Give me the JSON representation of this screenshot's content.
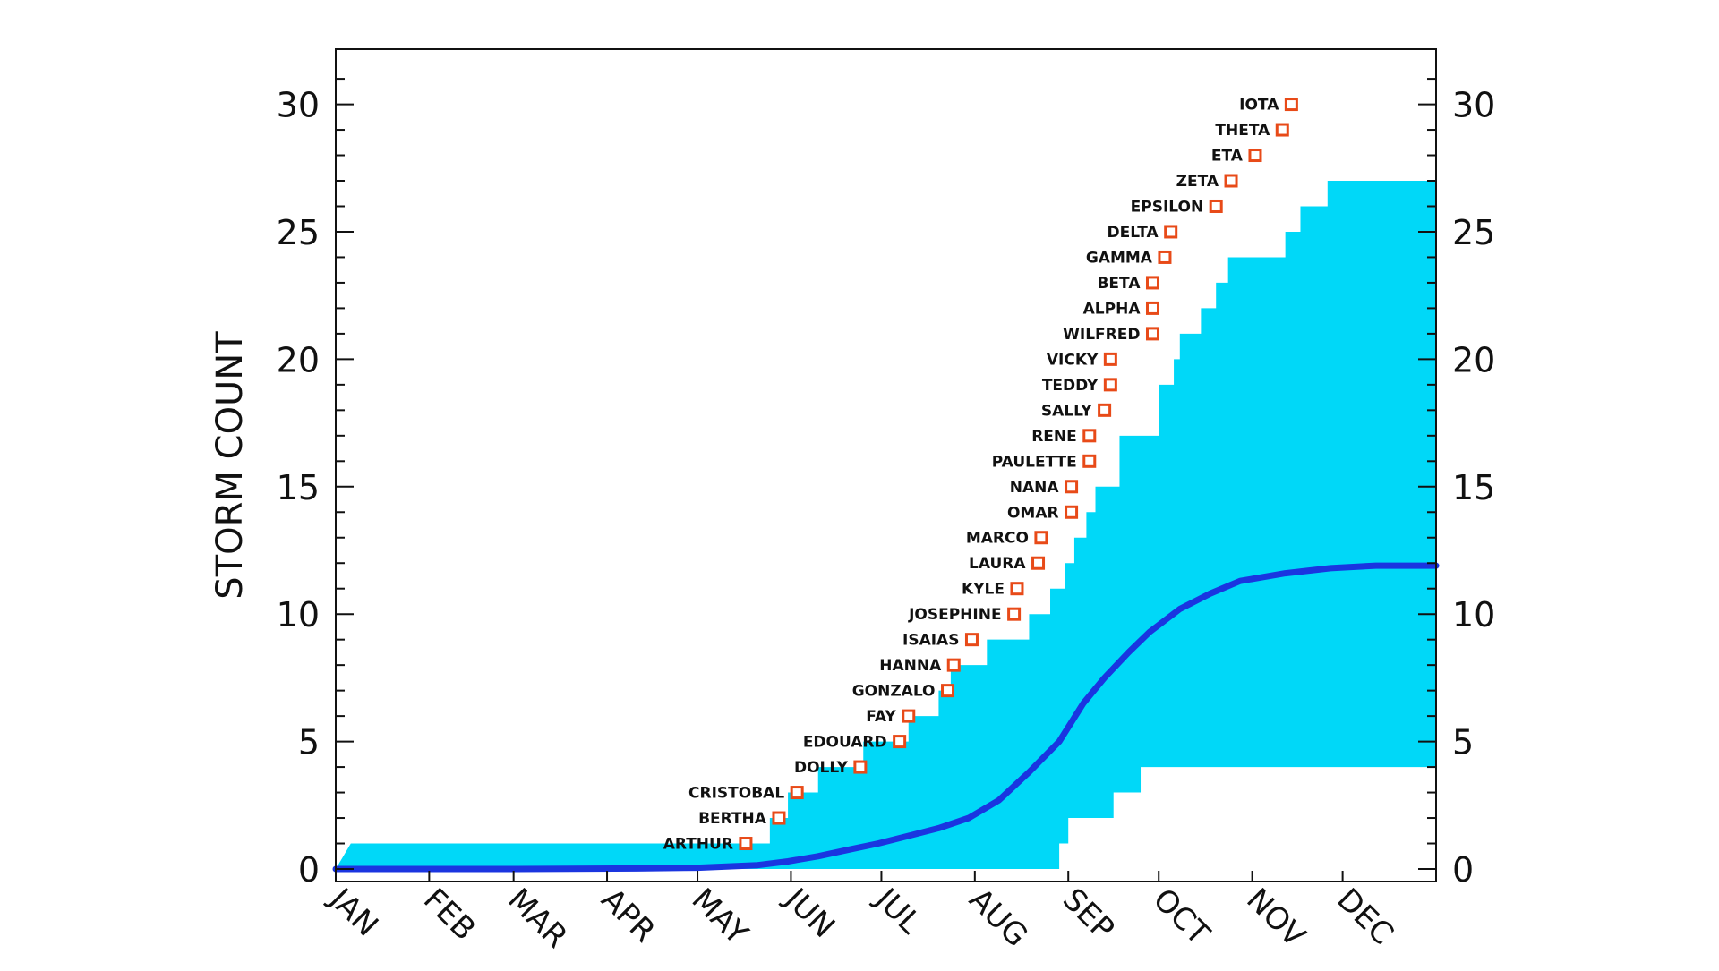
{
  "chart_data": {
    "type": "area",
    "ylabel": "STORM COUNT",
    "xlabel": "",
    "title": "",
    "ylim": [
      0,
      32
    ],
    "xlim": [
      0,
      365
    ],
    "yticks_major": [
      0,
      5,
      10,
      15,
      20,
      25,
      30
    ],
    "months": [
      "JAN",
      "FEB",
      "MAR",
      "APR",
      "MAY",
      "JUN",
      "JUL",
      "AUG",
      "SEP",
      "OCT",
      "NOV",
      "DEC"
    ],
    "month_start_days": [
      0,
      31,
      59,
      90,
      120,
      151,
      181,
      212,
      243,
      273,
      304,
      334
    ],
    "colors": {
      "band": "#00d8f8",
      "mean_line": "#1a35e0",
      "marker": "#e84a18",
      "axis": "#111111"
    },
    "band_upper": [
      [
        0,
        0
      ],
      [
        5,
        1
      ],
      [
        144,
        1
      ],
      [
        144,
        2
      ],
      [
        150,
        2
      ],
      [
        150,
        3
      ],
      [
        160,
        3
      ],
      [
        160,
        4
      ],
      [
        175,
        4
      ],
      [
        175,
        5
      ],
      [
        190,
        5
      ],
      [
        190,
        6
      ],
      [
        200,
        6
      ],
      [
        200,
        7
      ],
      [
        204,
        7
      ],
      [
        204,
        8
      ],
      [
        216,
        8
      ],
      [
        216,
        9
      ],
      [
        230,
        9
      ],
      [
        230,
        10
      ],
      [
        237,
        10
      ],
      [
        237,
        11
      ],
      [
        242,
        11
      ],
      [
        242,
        12
      ],
      [
        245,
        12
      ],
      [
        245,
        13
      ],
      [
        249,
        13
      ],
      [
        249,
        14
      ],
      [
        252,
        14
      ],
      [
        252,
        15
      ],
      [
        260,
        15
      ],
      [
        260,
        17
      ],
      [
        273,
        17
      ],
      [
        273,
        19
      ],
      [
        278,
        19
      ],
      [
        278,
        20
      ],
      [
        280,
        20
      ],
      [
        280,
        21
      ],
      [
        287,
        21
      ],
      [
        287,
        22
      ],
      [
        292,
        22
      ],
      [
        292,
        23
      ],
      [
        296,
        23
      ],
      [
        296,
        24
      ],
      [
        315,
        24
      ],
      [
        315,
        25
      ],
      [
        320,
        25
      ],
      [
        320,
        26
      ],
      [
        329,
        26
      ],
      [
        329,
        27
      ],
      [
        365,
        27
      ],
      [
        365,
        28
      ]
    ],
    "band_lower": [
      [
        0,
        0
      ],
      [
        240,
        0
      ],
      [
        240,
        1
      ],
      [
        243,
        1
      ],
      [
        243,
        2
      ],
      [
        258,
        2
      ],
      [
        258,
        3
      ],
      [
        267,
        3
      ],
      [
        267,
        4
      ],
      [
        365,
        4
      ]
    ],
    "mean_curve": [
      [
        0,
        0
      ],
      [
        60,
        0
      ],
      [
        100,
        0.02
      ],
      [
        120,
        0.05
      ],
      [
        140,
        0.15
      ],
      [
        150,
        0.3
      ],
      [
        160,
        0.5
      ],
      [
        170,
        0.75
      ],
      [
        180,
        1
      ],
      [
        190,
        1.3
      ],
      [
        200,
        1.6
      ],
      [
        210,
        2
      ],
      [
        220,
        2.7
      ],
      [
        230,
        3.8
      ],
      [
        240,
        5
      ],
      [
        248,
        6.5
      ],
      [
        255,
        7.5
      ],
      [
        263,
        8.5
      ],
      [
        270,
        9.3
      ],
      [
        280,
        10.2
      ],
      [
        290,
        10.8
      ],
      [
        300,
        11.3
      ],
      [
        315,
        11.6
      ],
      [
        330,
        11.8
      ],
      [
        345,
        11.9
      ],
      [
        365,
        11.9
      ]
    ],
    "storms": [
      {
        "name": "ARTHUR",
        "day": 136,
        "count": 1
      },
      {
        "name": "BERTHA",
        "day": 147,
        "count": 2
      },
      {
        "name": "CRISTOBAL",
        "day": 153,
        "count": 3
      },
      {
        "name": "DOLLY",
        "day": 174,
        "count": 4
      },
      {
        "name": "EDOUARD",
        "day": 187,
        "count": 5
      },
      {
        "name": "FAY",
        "day": 190,
        "count": 6
      },
      {
        "name": "GONZALO",
        "day": 203,
        "count": 7
      },
      {
        "name": "HANNA",
        "day": 205,
        "count": 8
      },
      {
        "name": "ISAIAS",
        "day": 211,
        "count": 9
      },
      {
        "name": "JOSEPHINE",
        "day": 225,
        "count": 10
      },
      {
        "name": "KYLE",
        "day": 226,
        "count": 11
      },
      {
        "name": "LAURA",
        "day": 233,
        "count": 12
      },
      {
        "name": "MARCO",
        "day": 234,
        "count": 13
      },
      {
        "name": "OMAR",
        "day": 244,
        "count": 14
      },
      {
        "name": "NANA",
        "day": 244,
        "count": 15
      },
      {
        "name": "PAULETTE",
        "day": 250,
        "count": 16
      },
      {
        "name": "RENE",
        "day": 250,
        "count": 17
      },
      {
        "name": "SALLY",
        "day": 255,
        "count": 18
      },
      {
        "name": "TEDDY",
        "day": 257,
        "count": 19
      },
      {
        "name": "VICKY",
        "day": 257,
        "count": 20
      },
      {
        "name": "WILFRED",
        "day": 271,
        "count": 21
      },
      {
        "name": "ALPHA",
        "day": 271,
        "count": 22
      },
      {
        "name": "BETA",
        "day": 271,
        "count": 23
      },
      {
        "name": "GAMMA",
        "day": 275,
        "count": 24
      },
      {
        "name": "DELTA",
        "day": 277,
        "count": 25
      },
      {
        "name": "EPSILON",
        "day": 292,
        "count": 26
      },
      {
        "name": "ZETA",
        "day": 297,
        "count": 27
      },
      {
        "name": "ETA",
        "day": 305,
        "count": 28
      },
      {
        "name": "THETA",
        "day": 314,
        "count": 29
      },
      {
        "name": "IOTA",
        "day": 317,
        "count": 30
      }
    ],
    "grid": false,
    "legend": "none"
  }
}
